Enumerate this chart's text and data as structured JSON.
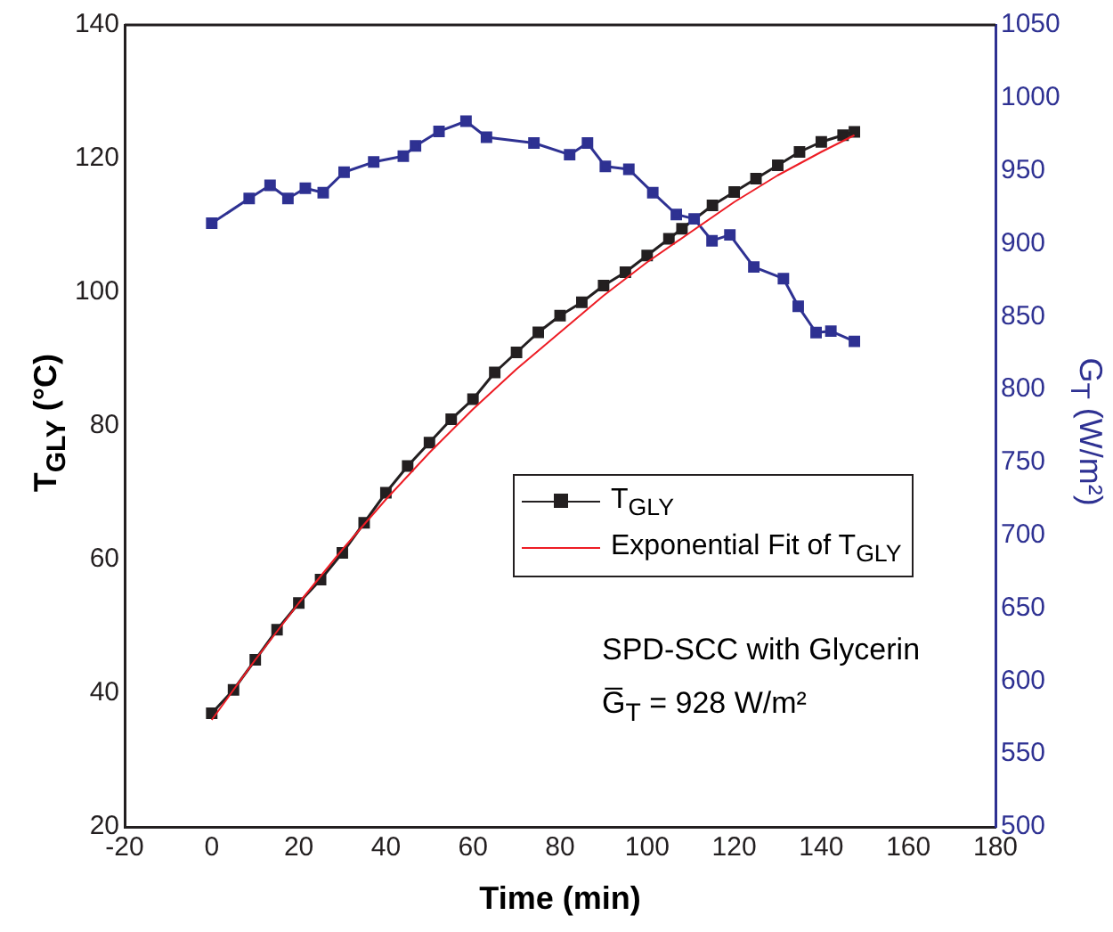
{
  "chart_data": {
    "type": "line",
    "xlabel": "Time (min)",
    "ylabel": "T$_{GLY}$ (°C)",
    "y2label": "G$_{T}$ (W/m²)",
    "xlim": [
      -20,
      180
    ],
    "xticks": [
      -20,
      0,
      20,
      40,
      60,
      80,
      100,
      120,
      140,
      160,
      180
    ],
    "ylim": [
      20,
      140
    ],
    "yticks": [
      20,
      40,
      60,
      80,
      100,
      120,
      140
    ],
    "y2lim": [
      500,
      1050
    ],
    "y2ticks": [
      500,
      550,
      600,
      650,
      700,
      750,
      800,
      850,
      900,
      950,
      1000,
      1050
    ],
    "grid": false,
    "legend": "right",
    "annotations": [
      "SPD-SCC with Glycerin",
      "G̅$_{T}$ = 928 W/m²"
    ],
    "series": [
      {
        "name": "T$_{GLY}$",
        "color": "#231f20",
        "marker": "square",
        "line_style": "solid",
        "x": [
          0,
          5,
          10,
          15,
          20,
          25,
          30,
          35,
          40,
          45,
          50,
          55,
          60,
          65,
          70,
          75,
          80,
          85,
          90,
          95,
          100,
          105,
          108,
          115,
          120,
          125,
          130,
          135,
          140,
          145,
          147.6
        ],
        "values": [
          37,
          40.5,
          45,
          49.5,
          53.5,
          57,
          61,
          65.5,
          70,
          74,
          77.5,
          81,
          84,
          88,
          91,
          94,
          96.5,
          98.5,
          101,
          103,
          105.5,
          108,
          109.5,
          113,
          115,
          117,
          119,
          121,
          122.5,
          123.5,
          124
        ]
      },
      {
        "name": "Exponential Fit of T$_{GLY}$",
        "color": "#ed1c24",
        "marker": "none",
        "line_style": "solid",
        "x": [
          0,
          10,
          20,
          30,
          40,
          50,
          60,
          70,
          80,
          90,
          100,
          110,
          120,
          130,
          140,
          147.6
        ],
        "values": [
          36,
          45,
          53.5,
          61.5,
          69,
          76,
          82.5,
          88.5,
          94,
          99.5,
          104.5,
          109,
          113.5,
          117.5,
          121,
          123.5
        ]
      },
      {
        "color": "#2e3192",
        "marker": "square",
        "line_style": "solid",
        "axis": "y2",
        "x": [
          0,
          8.6,
          13.4,
          17.5,
          21.5,
          25.6,
          30.4,
          37.2,
          44,
          46.8,
          52.2,
          58.4,
          63.1,
          74,
          82.2,
          86.3,
          90.4,
          95.8,
          101.3,
          106.7,
          110.8,
          114.9,
          119,
          124.5,
          131.3,
          134.7,
          138.8,
          142.2,
          147.6
        ],
        "values": [
          914,
          931,
          940,
          931,
          938,
          935,
          949,
          956,
          960,
          967,
          977,
          984,
          973,
          969,
          961,
          969,
          953,
          951,
          935,
          920,
          917,
          902,
          906,
          884,
          876,
          857,
          839,
          840,
          833
        ]
      }
    ]
  }
}
